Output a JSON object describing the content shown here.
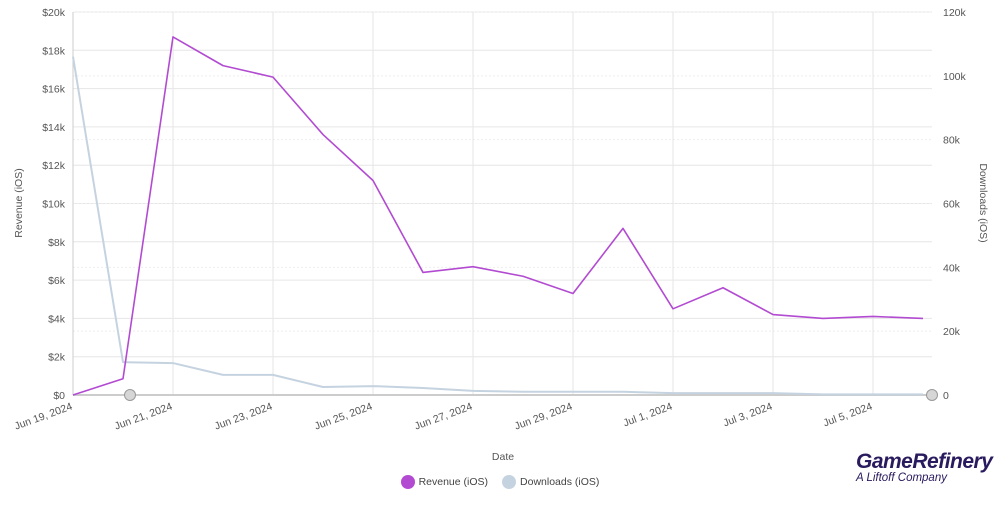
{
  "chart_data": {
    "type": "line",
    "xlabel": "Date",
    "x": [
      "Jun 19, 2024",
      "Jun 20, 2024",
      "Jun 21, 2024",
      "Jun 22, 2024",
      "Jun 23, 2024",
      "Jun 24, 2024",
      "Jun 25, 2024",
      "Jun 26, 2024",
      "Jun 27, 2024",
      "Jun 28, 2024",
      "Jun 29, 2024",
      "Jun 30, 2024",
      "Jul 1, 2024",
      "Jul 2, 2024",
      "Jul 3, 2024",
      "Jul 4, 2024",
      "Jul 5, 2024",
      "Jul 6, 2024"
    ],
    "xticks": [
      "Jun 19, 2024",
      "Jun 21, 2024",
      "Jun 23, 2024",
      "Jun 25, 2024",
      "Jun 27, 2024",
      "Jun 29, 2024",
      "Jul 1, 2024",
      "Jul 3, 2024",
      "Jul 5, 2024"
    ],
    "y_left": {
      "label": "Revenue (iOS)",
      "range": [
        0,
        20000
      ],
      "ticks": [
        "$0",
        "$2k",
        "$4k",
        "$6k",
        "$8k",
        "$10k",
        "$12k",
        "$14k",
        "$16k",
        "$18k",
        "$20k"
      ]
    },
    "y_right": {
      "label": "Downloads (iOS)",
      "range": [
        0,
        120000
      ],
      "ticks": [
        "0",
        "20k",
        "40k",
        "60k",
        "80k",
        "100k",
        "120k"
      ]
    },
    "grid": true,
    "legend": "bottom",
    "series": [
      {
        "name": "Revenue (iOS)",
        "axis": "left",
        "color": "#b24bd1",
        "values": [
          0,
          850,
          18700,
          17200,
          16600,
          13600,
          11200,
          6400,
          6700,
          6200,
          5300,
          8700,
          4500,
          5600,
          4200,
          4000,
          4100,
          4000
        ]
      },
      {
        "name": "Downloads (iOS)",
        "axis": "right",
        "color": "#c5d3e0",
        "values": [
          106000,
          10300,
          10000,
          6300,
          6300,
          2500,
          2800,
          2200,
          1300,
          1000,
          1000,
          1000,
          600,
          600,
          600,
          200,
          200,
          200
        ]
      }
    ]
  },
  "logo": {
    "name": "GameRefinery",
    "tagline": "A Liftoff Company"
  }
}
